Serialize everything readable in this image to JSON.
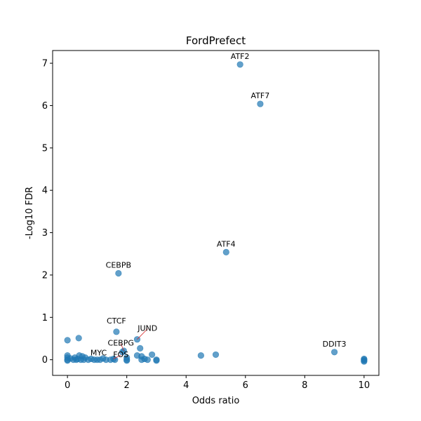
{
  "chart_data": {
    "type": "scatter",
    "title": "FordPrefect",
    "xlabel": "Odds ratio",
    "ylabel": "-Log10 FDR",
    "xlim": [
      -0.5,
      10.5
    ],
    "ylim": [
      -0.37,
      7.3
    ],
    "xticks": [
      0,
      2,
      4,
      6,
      8,
      10
    ],
    "yticks": [
      0,
      1,
      2,
      3,
      4,
      5,
      6,
      7
    ],
    "grid": false,
    "point_color": "#1f77b4",
    "point_alpha": 0.7,
    "leader_color": "#d62728",
    "points": [
      {
        "x": 5.82,
        "y": 6.97
      },
      {
        "x": 6.5,
        "y": 6.04
      },
      {
        "x": 5.35,
        "y": 2.54
      },
      {
        "x": 1.72,
        "y": 2.04
      },
      {
        "x": 1.65,
        "y": 0.66
      },
      {
        "x": 2.35,
        "y": 0.48
      },
      {
        "x": 1.9,
        "y": 0.21
      },
      {
        "x": 1.85,
        "y": 0.18
      },
      {
        "x": 9.0,
        "y": 0.18
      },
      {
        "x": 1.0,
        "y": 0.0
      },
      {
        "x": 1.55,
        "y": 0.02
      },
      {
        "x": 0.0,
        "y": 0.46
      },
      {
        "x": 0.38,
        "y": 0.51
      },
      {
        "x": 0.0,
        "y": 0.1
      },
      {
        "x": 0.0,
        "y": 0.05
      },
      {
        "x": 0.0,
        "y": 0.0
      },
      {
        "x": 0.0,
        "y": -0.02
      },
      {
        "x": 0.1,
        "y": 0.03
      },
      {
        "x": 0.2,
        "y": 0.0
      },
      {
        "x": 0.25,
        "y": 0.05
      },
      {
        "x": 0.3,
        "y": 0.0
      },
      {
        "x": 0.35,
        "y": 0.02
      },
      {
        "x": 0.4,
        "y": 0.1
      },
      {
        "x": 0.45,
        "y": 0.0
      },
      {
        "x": 0.5,
        "y": 0.08
      },
      {
        "x": 0.55,
        "y": 0.0
      },
      {
        "x": 0.6,
        "y": 0.05
      },
      {
        "x": 0.7,
        "y": 0.0
      },
      {
        "x": 0.8,
        "y": 0.02
      },
      {
        "x": 0.9,
        "y": 0.0
      },
      {
        "x": 1.1,
        "y": 0.0
      },
      {
        "x": 1.2,
        "y": 0.03
      },
      {
        "x": 1.3,
        "y": 0.0
      },
      {
        "x": 1.45,
        "y": 0.0
      },
      {
        "x": 1.6,
        "y": 0.0
      },
      {
        "x": 2.0,
        "y": 0.0
      },
      {
        "x": 2.0,
        "y": 0.05
      },
      {
        "x": 2.0,
        "y": -0.02
      },
      {
        "x": 2.35,
        "y": 0.1
      },
      {
        "x": 2.45,
        "y": 0.27
      },
      {
        "x": 2.5,
        "y": 0.0
      },
      {
        "x": 2.5,
        "y": 0.08
      },
      {
        "x": 2.6,
        "y": 0.02
      },
      {
        "x": 2.7,
        "y": 0.0
      },
      {
        "x": 2.85,
        "y": 0.12
      },
      {
        "x": 3.0,
        "y": 0.0
      },
      {
        "x": 3.0,
        "y": -0.02
      },
      {
        "x": 4.5,
        "y": 0.1
      },
      {
        "x": 5.0,
        "y": 0.12
      },
      {
        "x": 10.0,
        "y": 0.02
      },
      {
        "x": 10.0,
        "y": 0.0
      },
      {
        "x": 10.0,
        "y": -0.02
      },
      {
        "x": 10.0,
        "y": -0.04
      }
    ],
    "annotations": [
      {
        "text": "ATF2",
        "x": 5.82,
        "y": 6.97,
        "label_x": 5.82,
        "label_y": 7.1,
        "leader": false
      },
      {
        "text": "ATF7",
        "x": 6.5,
        "y": 6.04,
        "label_x": 6.5,
        "label_y": 6.17,
        "leader": false
      },
      {
        "text": "ATF4",
        "x": 5.35,
        "y": 2.54,
        "label_x": 5.35,
        "label_y": 2.67,
        "leader": false
      },
      {
        "text": "CEBPB",
        "x": 1.72,
        "y": 2.04,
        "label_x": 1.72,
        "label_y": 2.17,
        "leader": false
      },
      {
        "text": "CTCF",
        "x": 1.65,
        "y": 0.66,
        "label_x": 1.65,
        "label_y": 0.86,
        "leader": false
      },
      {
        "text": "JUND",
        "x": 2.35,
        "y": 0.48,
        "label_x": 2.7,
        "label_y": 0.68,
        "leader": true
      },
      {
        "text": "CEBPG",
        "x": 1.9,
        "y": 0.21,
        "label_x": 1.8,
        "label_y": 0.33,
        "leader": true
      },
      {
        "text": "DDIT3",
        "x": 9.0,
        "y": 0.18,
        "label_x": 9.0,
        "label_y": 0.31,
        "leader": false
      },
      {
        "text": "MYC",
        "x": 1.0,
        "y": 0.0,
        "label_x": 1.05,
        "label_y": 0.1,
        "leader": false
      },
      {
        "text": "FOS",
        "x": 1.55,
        "y": 0.02,
        "label_x": 1.8,
        "label_y": 0.06,
        "leader": true
      }
    ]
  }
}
